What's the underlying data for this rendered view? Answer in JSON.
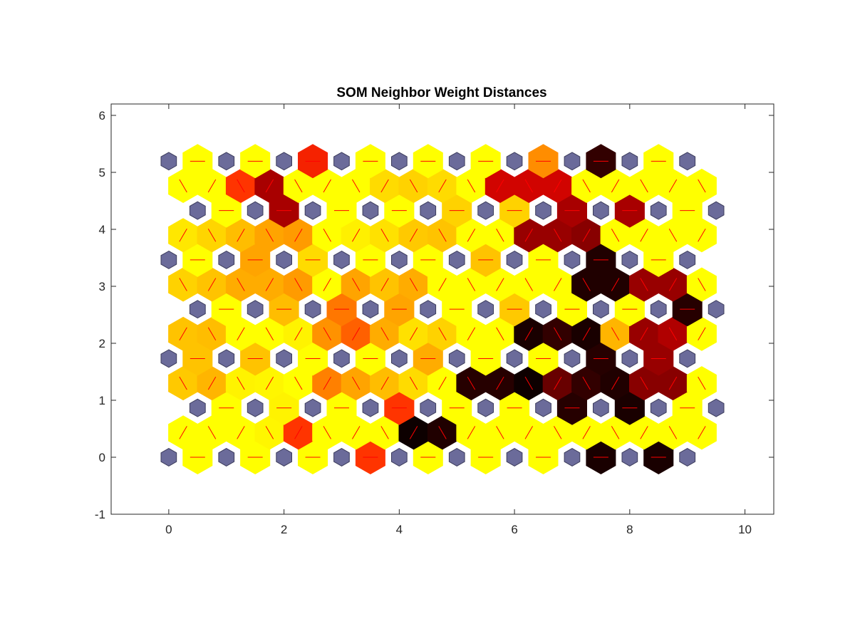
{
  "chart_data": {
    "type": "heatmap",
    "title": "SOM Neighbor Weight Distances",
    "xlabel": "",
    "ylabel": "",
    "xlim": [
      -1,
      10.5
    ],
    "ylim": [
      -1,
      6.2
    ],
    "x_ticks": [
      "0",
      "2",
      "4",
      "6",
      "8",
      "10"
    ],
    "y_ticks": [
      "-1",
      "0",
      "1",
      "2",
      "3",
      "4",
      "5",
      "6"
    ],
    "grid_size": {
      "cols": 10,
      "rows": 7
    },
    "row_offset_pattern": "odd rows shifted right by 0.5; row spacing 0.866",
    "colors": {
      "neuron": "#6b6b9a",
      "neuron_edge": "#3c3c5c",
      "connector": "#ff0000",
      "colormap": [
        "#000000",
        "#5a0000",
        "#cc0000",
        "#ff2a00",
        "#ff6a00",
        "#ffaa00",
        "#ffd400",
        "#ffff00"
      ]
    },
    "colormap_note": "0 = dark (large distance), 1 = yellow (small distance)",
    "rows": [
      {
        "y": 0,
        "h": [
          1.0,
          1.0,
          1.0,
          0.45,
          1.0,
          1.0,
          1.0,
          0.04,
          0.04,
          1.0
        ],
        "d": [
          1.0,
          1.0,
          1.0,
          0.97,
          0.45,
          1.0,
          1.0,
          1.0,
          0.02,
          0.05,
          1.0,
          1.0
        ]
      },
      {
        "y": 0.866,
        "h": [
          1.0,
          0.96,
          1.0,
          0.45,
          1.0,
          1.0,
          0.06,
          0.04,
          1.0,
          1.0
        ],
        "d": [
          0.82,
          0.75,
          0.96,
          0.97,
          1.0,
          0.62,
          0.7,
          0.78,
          0.88,
          1.0,
          0.06,
          0.06,
          0.02,
          0.16,
          0.08,
          0.05,
          0.2,
          0.2
        ]
      },
      {
        "y": 1.732,
        "h": [
          0.8,
          0.8,
          1.0,
          1.0,
          0.72,
          1.0,
          1.0,
          0.06,
          0.22,
          1.0
        ],
        "d": [
          0.8,
          0.78,
          1.0,
          1.0,
          0.96,
          0.66,
          0.55,
          0.72,
          0.9,
          0.85,
          1.0,
          1.0,
          0.04,
          0.08,
          0.04,
          0.75,
          0.22,
          0.25
        ]
      },
      {
        "y": 2.598,
        "h": [
          1.0,
          0.78,
          0.6,
          0.7,
          1.0,
          0.82,
          1.0,
          1.0,
          0.06,
          1.0
        ],
        "d": [
          0.85,
          0.8,
          0.72,
          0.72,
          0.68,
          1.0,
          0.7,
          0.8,
          0.72,
          1.0,
          1.0,
          1.0,
          1.0,
          1.0,
          0.05,
          0.05,
          0.22,
          0.22
        ]
      },
      {
        "y": 3.464,
        "h": [
          1.0,
          0.7,
          0.88,
          1.0,
          1.0,
          0.8,
          1.0,
          0.05,
          1.0,
          1.0
        ],
        "d": [
          0.92,
          0.86,
          0.78,
          0.7,
          0.68,
          1.0,
          0.95,
          0.9,
          0.82,
          0.8,
          1.0,
          1.0,
          0.22,
          0.22,
          0.2,
          1.0,
          1.0,
          1.0
        ]
      },
      {
        "y": 4.33,
        "h": [
          1.0,
          0.24,
          1.0,
          1.0,
          0.85,
          0.85,
          0.24,
          0.24,
          1.0,
          1.0
        ],
        "d": [
          1.0,
          1.0,
          0.45,
          0.24,
          1.0,
          1.0,
          1.0,
          0.88,
          0.85,
          0.88,
          1.0,
          0.3,
          0.3,
          0.3,
          1.0,
          1.0,
          1.0,
          1.0
        ]
      },
      {
        "y": 5.196,
        "h": [
          1.0,
          1.0,
          0.4,
          1.0,
          1.0,
          1.0,
          0.65,
          0.08,
          1.0,
          1.0
        ],
        "d": []
      }
    ]
  }
}
